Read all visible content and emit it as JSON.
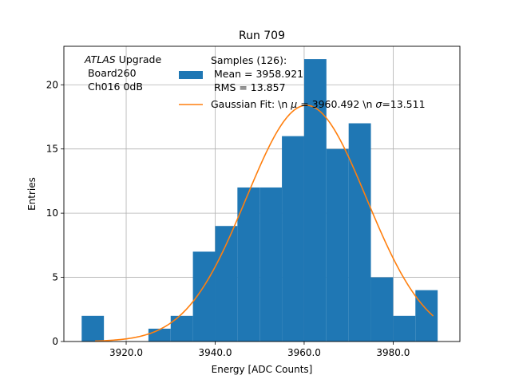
{
  "chart_data": {
    "type": "bar",
    "title": "Run 709",
    "xlabel": "Energy [ADC Counts]",
    "ylabel": "Entries",
    "xlim": [
      3906.0,
      3995.0
    ],
    "ylim": [
      0,
      23
    ],
    "grid": true,
    "x_ticks": [
      3920,
      3940,
      3960,
      3980
    ],
    "x_tick_labels": [
      "3920.0",
      "3940.0",
      "3960.0",
      "3980.0"
    ],
    "y_ticks": [
      0,
      5,
      10,
      15,
      20
    ],
    "y_tick_labels": [
      "0",
      "5",
      "10",
      "15",
      "20"
    ],
    "bin_edges": [
      3910,
      3915,
      3920,
      3925,
      3930,
      3935,
      3940,
      3945,
      3950,
      3955,
      3960,
      3965,
      3970,
      3975,
      3980,
      3985,
      3990
    ],
    "values": [
      2,
      0,
      0,
      1,
      2,
      7,
      9,
      12,
      12,
      16,
      22,
      15,
      17,
      5,
      2,
      4
    ],
    "bar_color": "#1f77b4",
    "fit": {
      "mu": 3960.492,
      "sigma": 13.511,
      "amplitude": 18.4,
      "x_range": [
        3913,
        3989
      ],
      "color": "#ff7f0e"
    },
    "annotation": {
      "italic_part": "ATLAS",
      "first_line_rest": " Upgrade",
      "lines": [
        " Board260",
        " Ch016 0dB"
      ]
    },
    "legend": {
      "location": "top-right",
      "entries": [
        {
          "kind": "patch",
          "lines": [
            "Samples (126):",
            " Mean = 3958.921",
            " RMS = 13.857"
          ]
        },
        {
          "kind": "line",
          "text_a": "Gaussian Fit: \\n ",
          "sym_a": "μ",
          "text_b": " = 3960.492 \\n ",
          "sym_b": "σ",
          "text_c": "=13.511"
        }
      ]
    }
  }
}
